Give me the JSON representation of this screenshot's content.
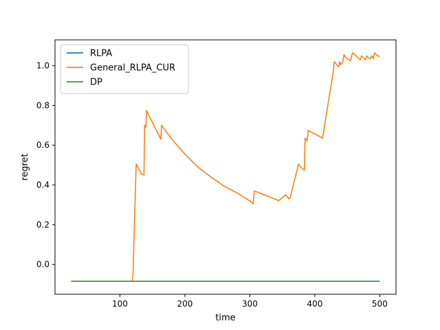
{
  "chart_data": {
    "type": "line",
    "title": "",
    "xlabel": "time",
    "ylabel": "regret",
    "xlim": [
      0,
      525
    ],
    "ylim": [
      -0.15,
      1.13
    ],
    "xticks": [
      100,
      200,
      300,
      400,
      500
    ],
    "yticks": [
      0.0,
      0.2,
      0.4,
      0.6,
      0.8,
      1.0
    ],
    "xtick_labels": [
      "100",
      "200",
      "300",
      "400",
      "500"
    ],
    "ytick_labels": [
      "0.0",
      "0.2",
      "0.4",
      "0.6",
      "0.8",
      "1.0"
    ],
    "grid": false,
    "legend_position": "top-left",
    "series": [
      {
        "name": "RLPA",
        "color": "#1f77b4",
        "x": [
          25,
          500
        ],
        "y": [
          -0.085,
          -0.085
        ]
      },
      {
        "name": "General_RLPA_CUR",
        "color": "#ff7f0e",
        "x": [
          25,
          119,
          120,
          125,
          133,
          137,
          138,
          140,
          141,
          143,
          160,
          163,
          164,
          180,
          200,
          220,
          240,
          260,
          280,
          300,
          305,
          307,
          315,
          330,
          342,
          344,
          355,
          358,
          360,
          362,
          375,
          378,
          384,
          385,
          387,
          388,
          390,
          392,
          410,
          412,
          420,
          428,
          430,
          435,
          437,
          438,
          440,
          443,
          445,
          448,
          455,
          458,
          460,
          465,
          470,
          472,
          475,
          478,
          480,
          482,
          485,
          488,
          490,
          492,
          495,
          500
        ],
        "y": [
          -0.085,
          -0.085,
          -0.06,
          0.505,
          0.455,
          0.45,
          0.7,
          0.69,
          0.775,
          0.76,
          0.65,
          0.63,
          0.7,
          0.63,
          0.555,
          0.49,
          0.44,
          0.395,
          0.36,
          0.32,
          0.305,
          0.37,
          0.36,
          0.34,
          0.325,
          0.32,
          0.35,
          0.34,
          0.33,
          0.335,
          0.505,
          0.49,
          0.475,
          0.635,
          0.63,
          0.62,
          0.675,
          0.67,
          0.64,
          0.635,
          0.8,
          0.96,
          1.02,
          1.0,
          0.995,
          1.02,
          1.005,
          1.02,
          1.055,
          1.04,
          1.025,
          1.065,
          1.06,
          1.045,
          1.03,
          1.05,
          1.04,
          1.03,
          1.05,
          1.04,
          1.035,
          1.05,
          1.035,
          1.065,
          1.055,
          1.045
        ]
      },
      {
        "name": "DP",
        "color": "#2ca02c",
        "x": [
          25,
          500
        ],
        "y": [
          -0.085,
          -0.085
        ]
      }
    ]
  }
}
